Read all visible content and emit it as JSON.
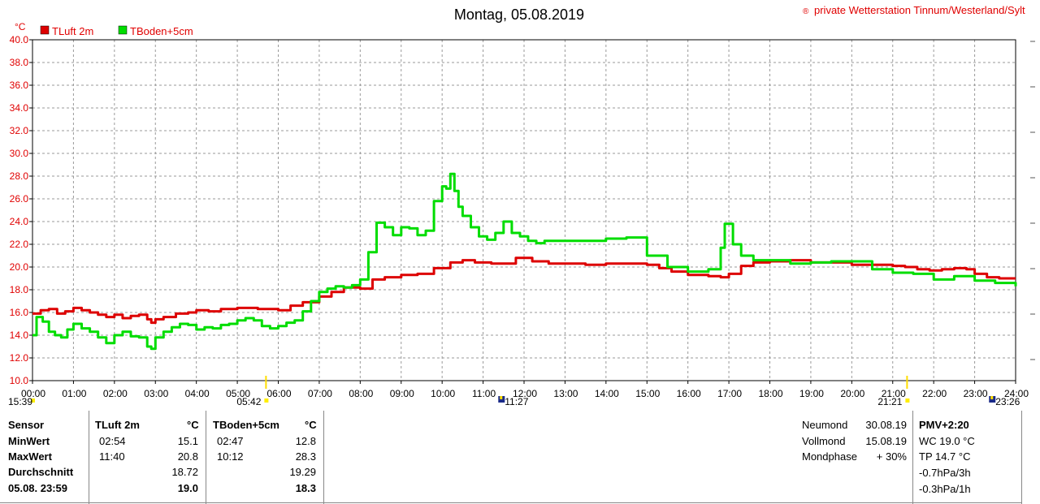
{
  "header": {
    "title": "Montag, 05.08.2019",
    "copyright_symbol": "®",
    "copyright": "private Wetterstation Tinnum/Westerland/Sylt",
    "unit": "°C"
  },
  "chart_data": {
    "type": "line",
    "ylim": [
      10,
      40
    ],
    "yticks": [
      "10.0",
      "12.0",
      "14.0",
      "16.0",
      "18.0",
      "20.0",
      "22.0",
      "24.0",
      "26.0",
      "28.0",
      "30.0",
      "32.0",
      "34.0",
      "36.0",
      "38.0",
      "40.0"
    ],
    "xlim": [
      0,
      24
    ],
    "xticks": [
      "00:00",
      "01:00",
      "02:00",
      "03:00",
      "04:00",
      "05:00",
      "06:00",
      "07:00",
      "08:00",
      "09:00",
      "10:00",
      "11:00",
      "12:00",
      "13:00",
      "14:00",
      "15:00",
      "16:00",
      "17:00",
      "18:00",
      "19:00",
      "20:00",
      "21:00",
      "22:00",
      "23:00",
      "24:00"
    ],
    "grid": true,
    "legend_position": "top-left",
    "series": [
      {
        "name": "TLuft 2m",
        "color": "#dd0000",
        "x": [
          0,
          0.2,
          0.4,
          0.6,
          0.8,
          1.0,
          1.2,
          1.4,
          1.6,
          1.8,
          2.0,
          2.2,
          2.4,
          2.6,
          2.8,
          2.9,
          3.0,
          3.2,
          3.5,
          3.8,
          4.0,
          4.3,
          4.6,
          5.0,
          5.5,
          6.0,
          6.3,
          6.6,
          7.0,
          7.3,
          7.6,
          8.0,
          8.3,
          8.6,
          9.0,
          9.4,
          9.8,
          10.2,
          10.5,
          10.8,
          11.2,
          11.5,
          11.8,
          12.2,
          12.6,
          13.0,
          13.5,
          14.0,
          14.5,
          15.0,
          15.3,
          15.6,
          16.0,
          16.5,
          16.8,
          17.0,
          17.3,
          17.6,
          18.0,
          18.5,
          19.0,
          19.5,
          20.0,
          20.5,
          21.0,
          21.3,
          21.6,
          21.9,
          22.2,
          22.5,
          22.8,
          23.0,
          23.3,
          23.6,
          24.0
        ],
        "y": [
          15.9,
          16.2,
          16.3,
          15.9,
          16.1,
          16.4,
          16.2,
          16.0,
          15.8,
          15.6,
          15.8,
          15.5,
          15.7,
          15.8,
          15.4,
          15.1,
          15.4,
          15.6,
          15.9,
          16.0,
          16.2,
          16.1,
          16.3,
          16.4,
          16.3,
          16.2,
          16.6,
          16.9,
          17.4,
          17.8,
          18.2,
          18.1,
          18.9,
          19.1,
          19.3,
          19.4,
          19.9,
          20.4,
          20.6,
          20.4,
          20.3,
          20.3,
          20.8,
          20.5,
          20.3,
          20.3,
          20.2,
          20.3,
          20.3,
          20.2,
          19.9,
          19.6,
          19.3,
          19.2,
          19.1,
          19.4,
          20.1,
          20.4,
          20.5,
          20.6,
          20.4,
          20.4,
          20.2,
          20.2,
          20.1,
          20.0,
          19.8,
          19.7,
          19.8,
          19.9,
          19.8,
          19.4,
          19.1,
          19.0,
          19.0
        ]
      },
      {
        "name": "TBoden+5cm",
        "color": "#00dd00",
        "x": [
          0,
          0.1,
          0.25,
          0.4,
          0.55,
          0.7,
          0.85,
          1.0,
          1.2,
          1.4,
          1.6,
          1.8,
          2.0,
          2.2,
          2.4,
          2.6,
          2.8,
          2.9,
          3.0,
          3.2,
          3.4,
          3.6,
          3.8,
          4.0,
          4.2,
          4.4,
          4.6,
          4.8,
          5.0,
          5.2,
          5.4,
          5.6,
          5.8,
          6.0,
          6.2,
          6.4,
          6.6,
          6.8,
          7.0,
          7.2,
          7.4,
          7.6,
          7.8,
          8.0,
          8.2,
          8.4,
          8.6,
          8.8,
          9.0,
          9.2,
          9.4,
          9.6,
          9.8,
          10.0,
          10.1,
          10.2,
          10.3,
          10.4,
          10.5,
          10.7,
          10.9,
          11.1,
          11.3,
          11.5,
          11.7,
          11.9,
          12.1,
          12.3,
          12.5,
          13.0,
          13.5,
          14.0,
          14.5,
          15.0,
          15.5,
          16.0,
          16.5,
          16.8,
          16.9,
          17.1,
          17.3,
          17.6,
          18.0,
          18.5,
          19.0,
          19.5,
          20.0,
          20.5,
          21.0,
          21.5,
          22.0,
          22.5,
          23.0,
          23.5,
          24.0
        ],
        "y": [
          14.0,
          15.6,
          15.2,
          14.3,
          14.0,
          13.8,
          14.5,
          15.0,
          14.6,
          14.3,
          13.8,
          13.3,
          14.0,
          14.3,
          13.9,
          13.8,
          13.0,
          12.8,
          13.8,
          14.3,
          14.7,
          15.0,
          14.9,
          14.5,
          14.7,
          14.6,
          14.9,
          15.0,
          15.3,
          15.5,
          15.3,
          14.8,
          14.6,
          14.8,
          15.1,
          15.3,
          16.1,
          17.0,
          17.8,
          18.1,
          18.3,
          18.2,
          18.4,
          18.9,
          21.3,
          23.9,
          23.5,
          22.8,
          23.5,
          23.4,
          22.8,
          23.2,
          25.8,
          27.1,
          26.9,
          28.2,
          26.7,
          25.3,
          24.5,
          23.5,
          22.7,
          22.4,
          23.0,
          24.0,
          23.0,
          22.7,
          22.3,
          22.1,
          22.3,
          22.3,
          22.3,
          22.5,
          22.6,
          21.0,
          20.0,
          19.6,
          19.8,
          21.7,
          23.8,
          22.0,
          21.0,
          20.6,
          20.6,
          20.3,
          20.4,
          20.5,
          20.5,
          19.8,
          19.5,
          19.4,
          18.9,
          19.2,
          18.8,
          18.6,
          18.3
        ]
      }
    ]
  },
  "markers": [
    {
      "time_label": "15:39"
    },
    {
      "time_label": "05:42"
    },
    {
      "time_label": "11:27"
    },
    {
      "time_label": "21:21"
    },
    {
      "time_label": "23:26"
    }
  ],
  "table": {
    "col_headers": [
      "Sensor",
      "TLuft 2m",
      "°C",
      "TBoden+5cm",
      "°C"
    ],
    "rows": [
      {
        "label": "MinWert",
        "t1": "02:54",
        "v1": "15.1",
        "t2": "02:47",
        "v2": "12.8"
      },
      {
        "label": "MaxWert",
        "t1": "11:40",
        "v1": "20.8",
        "t2": "10:12",
        "v2": "28.3"
      },
      {
        "label": "Durchschnitt",
        "t1": "",
        "v1": "18.72",
        "t2": "",
        "v2": "19.29"
      },
      {
        "label": "05.08. 23:59",
        "t1": "",
        "v1": "19.0",
        "t2": "",
        "v2": "18.3"
      }
    ]
  },
  "moon": {
    "rows": [
      {
        "label": "Neumond",
        "value": "30.08.19"
      },
      {
        "label": "Vollmond",
        "value": "15.08.19"
      },
      {
        "label": "Mondphase",
        "value": "+ 30%"
      }
    ]
  },
  "extra": {
    "title": "PMV+2:20",
    "lines": [
      "WC 19.0 °C",
      "TP 14.7 °C",
      "-0.7hPa/3h",
      "-0.3hPa/1h"
    ]
  }
}
